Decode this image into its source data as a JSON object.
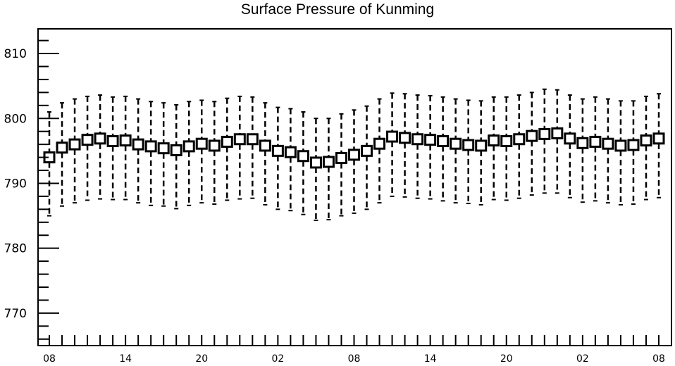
{
  "chart_data": {
    "type": "box",
    "title": "Surface Pressure of Kunming",
    "xlabel": "",
    "ylabel": "",
    "ylim": [
      765.0,
      813.8
    ],
    "yticks": [
      770,
      780,
      790,
      800,
      810
    ],
    "ytick_labels": [
      "770",
      "780",
      "790",
      "800",
      "810"
    ],
    "x_tick_labels": [
      {
        "index": 0,
        "label": "08"
      },
      {
        "index": 6,
        "label": "14"
      },
      {
        "index": 12,
        "label": "20"
      },
      {
        "index": 18,
        "label": "02"
      },
      {
        "index": 24,
        "label": "08"
      },
      {
        "index": 30,
        "label": "14"
      },
      {
        "index": 36,
        "label": "20"
      },
      {
        "index": 42,
        "label": "02"
      },
      {
        "index": 48,
        "label": "08"
      }
    ],
    "series": [
      {
        "center": [
          794.0,
          795.5,
          796.0,
          796.7,
          796.9,
          796.5,
          796.6,
          796.0,
          795.7,
          795.4,
          795.1,
          795.7,
          796.1,
          795.8,
          796.4,
          796.8,
          796.8,
          795.8,
          795.0,
          794.8,
          794.2,
          793.2,
          793.3,
          793.9,
          794.4,
          795.0,
          796.1,
          797.2,
          797.0,
          796.8,
          796.7,
          796.5,
          796.1,
          795.9,
          795.8,
          796.6,
          796.5,
          796.8,
          797.3,
          797.6,
          797.7,
          796.9,
          796.2,
          796.4,
          796.1,
          795.8,
          795.9,
          796.6,
          796.9
        ],
        "upper": [
          801.0,
          802.4,
          803.0,
          803.4,
          803.6,
          803.3,
          803.4,
          803.0,
          802.6,
          802.4,
          802.1,
          802.6,
          802.8,
          802.6,
          803.1,
          803.4,
          803.3,
          802.4,
          801.7,
          801.5,
          801.0,
          800.0,
          800.0,
          800.7,
          801.3,
          801.9,
          803.0,
          803.9,
          803.8,
          803.6,
          803.5,
          803.3,
          803.0,
          802.8,
          802.7,
          803.3,
          803.3,
          803.6,
          804.0,
          804.5,
          804.4,
          803.6,
          803.0,
          803.3,
          803.0,
          802.7,
          802.7,
          803.4,
          803.8
        ],
        "lower": [
          785.0,
          786.5,
          787.0,
          787.4,
          787.6,
          787.5,
          787.5,
          787.0,
          786.6,
          786.5,
          786.1,
          786.6,
          787.0,
          786.8,
          787.4,
          787.6,
          787.7,
          786.7,
          786.0,
          785.8,
          785.2,
          784.3,
          784.4,
          785.0,
          785.4,
          786.0,
          787.0,
          788.0,
          787.9,
          787.7,
          787.6,
          787.3,
          787.0,
          786.9,
          786.7,
          787.5,
          787.4,
          787.7,
          788.2,
          788.5,
          788.5,
          787.8,
          787.1,
          787.3,
          787.0,
          786.7,
          786.8,
          787.5,
          787.8
        ]
      }
    ]
  }
}
